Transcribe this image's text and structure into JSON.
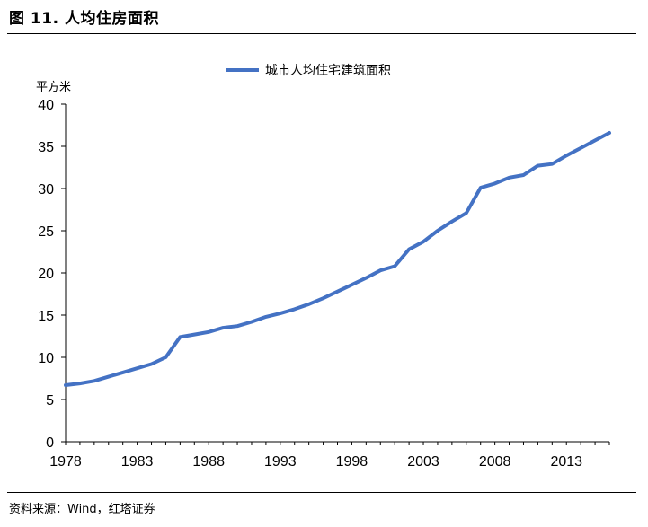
{
  "figure": {
    "title": "图  11. 人均住房面积",
    "source": "资料来源：Wind，红塔证券"
  },
  "chart_data": {
    "type": "line",
    "title": "",
    "xlabel": "",
    "ylabel": "平方米",
    "xlim": [
      1978,
      2016
    ],
    "ylim": [
      0,
      40
    ],
    "x_ticks": [
      1978,
      1983,
      1988,
      1993,
      1998,
      2003,
      2008,
      2013
    ],
    "y_ticks": [
      0,
      5,
      10,
      15,
      20,
      25,
      30,
      35,
      40
    ],
    "grid": false,
    "legend": "top-center",
    "series": [
      {
        "name": "城市人均住宅建筑面积",
        "color": "#4472C4",
        "x": [
          1978,
          1979,
          1980,
          1981,
          1982,
          1983,
          1984,
          1985,
          1986,
          1987,
          1988,
          1989,
          1990,
          1991,
          1992,
          1993,
          1994,
          1995,
          1996,
          1997,
          1998,
          1999,
          2000,
          2001,
          2002,
          2003,
          2004,
          2005,
          2006,
          2007,
          2008,
          2009,
          2010,
          2011,
          2012,
          2013,
          2014,
          2015,
          2016
        ],
        "values": [
          6.7,
          6.9,
          7.2,
          7.7,
          8.2,
          8.7,
          9.2,
          10.0,
          12.4,
          12.7,
          13.0,
          13.5,
          13.7,
          14.2,
          14.8,
          15.2,
          15.7,
          16.3,
          17.0,
          17.8,
          18.6,
          19.4,
          20.3,
          20.8,
          22.8,
          23.7,
          25.0,
          26.1,
          27.1,
          30.1,
          30.6,
          31.3,
          31.6,
          32.7,
          32.9,
          33.9,
          34.8,
          35.7,
          36.6
        ]
      }
    ]
  }
}
